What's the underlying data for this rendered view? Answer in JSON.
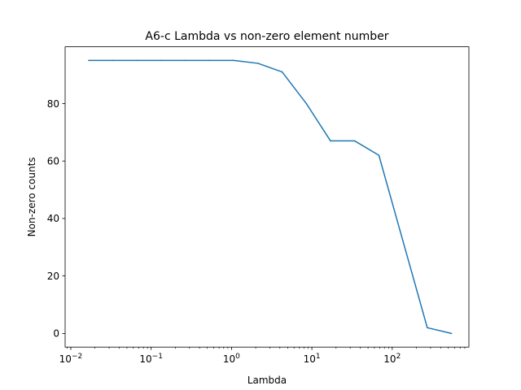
{
  "chart_data": {
    "type": "line",
    "title": "A6-c Lambda vs non-zero element number",
    "xlabel": "Lambda",
    "ylabel": "Non-zero counts",
    "xscale": "log",
    "xlim": [
      0.0085,
      900
    ],
    "ylim": [
      -4.75,
      99.75
    ],
    "x_major_ticks": [
      0.01,
      0.1,
      1,
      10,
      100
    ],
    "x_tick_labels": [
      {
        "base": "10",
        "exp": "−2"
      },
      {
        "base": "10",
        "exp": "−1"
      },
      {
        "base": "10",
        "exp": "0"
      },
      {
        "base": "10",
        "exp": "1"
      },
      {
        "base": "10",
        "exp": "2"
      }
    ],
    "y_ticks": [
      0,
      20,
      40,
      60,
      80
    ],
    "y_tick_labels": [
      "0",
      "20",
      "40",
      "60",
      "80"
    ],
    "grid": false,
    "series": [
      {
        "color": "#1f77b4",
        "x": [
          0.0167,
          0.0333,
          0.0667,
          0.133,
          0.267,
          0.533,
          1.067,
          2.133,
          4.267,
          8.533,
          17.07,
          34.13,
          68.27,
          136.5,
          273.1,
          546.1
        ],
        "y": [
          95,
          95,
          95,
          95,
          95,
          95,
          95,
          94,
          91,
          80,
          67,
          67,
          62,
          32,
          2,
          0
        ]
      }
    ]
  }
}
